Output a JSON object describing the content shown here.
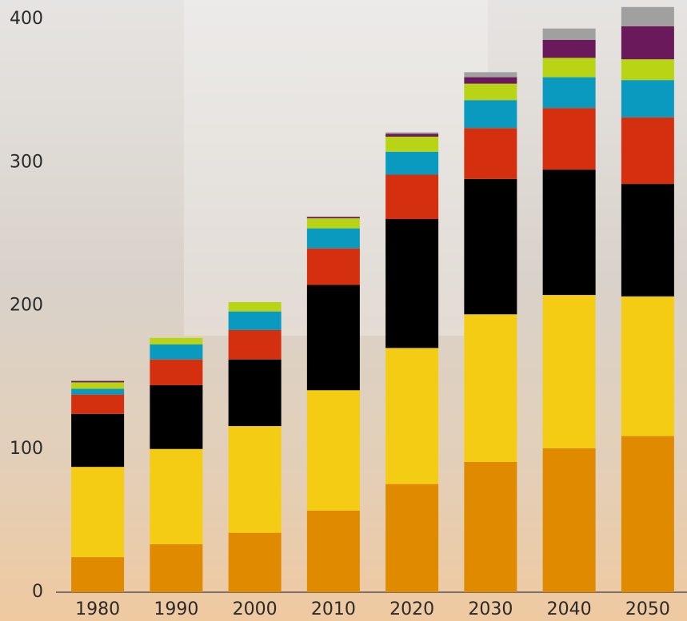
{
  "chart_data": {
    "type": "stacked-bar",
    "categories": [
      "1980",
      "1990",
      "2000",
      "2010",
      "2020",
      "2030",
      "2040",
      "2050"
    ],
    "series": [
      {
        "color": "#e08a00",
        "values": [
          24.5,
          33.5,
          41.5,
          57,
          75.5,
          91,
          100.5,
          109
        ]
      },
      {
        "color": "#f5cc14",
        "values": [
          63,
          66.5,
          74.5,
          84,
          95,
          103,
          107,
          97.5
        ]
      },
      {
        "color": "#000000",
        "values": [
          37,
          44.5,
          46.5,
          73.5,
          90,
          94.5,
          87.5,
          78.5
        ]
      },
      {
        "color": "#d4300f",
        "values": [
          13.5,
          18,
          20.5,
          25.5,
          31,
          35.5,
          43,
          46.5
        ]
      },
      {
        "color": "#0a9ac0",
        "values": [
          4,
          10.5,
          13,
          14,
          16,
          19.5,
          21.5,
          26
        ]
      },
      {
        "color": "#b8d414",
        "values": [
          4.5,
          4.5,
          6.5,
          7,
          10.5,
          11.5,
          13.5,
          14.5
        ]
      },
      {
        "color": "#6a1a5a",
        "values": [
          1,
          0,
          0,
          1,
          2,
          4.5,
          12.5,
          23
        ]
      },
      {
        "color": "#a0a0a0",
        "values": [
          0,
          0,
          0,
          0,
          1,
          3.5,
          8,
          13.5
        ]
      }
    ],
    "ylim": [
      0,
      413
    ],
    "yticks": [
      0,
      100,
      200,
      300,
      400
    ],
    "grid": false
  }
}
